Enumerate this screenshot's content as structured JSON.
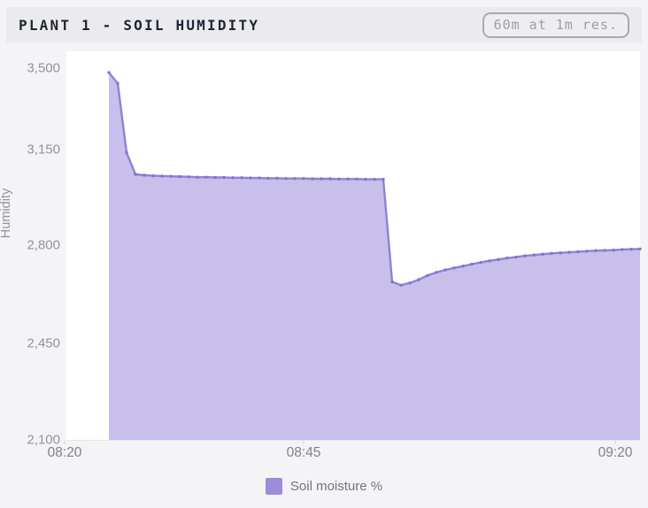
{
  "header": {
    "title": "PLANT 1 - SOIL HUMIDITY",
    "badge": "60m at 1m res."
  },
  "legend": {
    "label": "Soil moisture %"
  },
  "chart_data": {
    "type": "area",
    "title": "PLANT 1 - SOIL HUMIDITY",
    "xlabel": "",
    "ylabel": "Humidity",
    "ylim": [
      2100,
      3500
    ],
    "grid": false,
    "legend_position": "bottom",
    "y_ticks": {
      "values": [
        3500,
        3150,
        2800,
        2450,
        2100
      ],
      "labels": [
        "3,500",
        "3,150",
        "2,800",
        "2,450",
        "2,100"
      ]
    },
    "x_ticks": [
      "08:20",
      "08:45",
      "09:20"
    ],
    "series": [
      {
        "name": "Soil moisture %",
        "x": [
          "08:25",
          "08:26",
          "08:27",
          "08:28",
          "08:29",
          "08:30",
          "08:31",
          "08:32",
          "08:33",
          "08:34",
          "08:35",
          "08:36",
          "08:37",
          "08:38",
          "08:39",
          "08:40",
          "08:41",
          "08:42",
          "08:43",
          "08:44",
          "08:45",
          "08:46",
          "08:47",
          "08:48",
          "08:49",
          "08:50",
          "08:51",
          "08:52",
          "08:53",
          "08:54",
          "08:55",
          "08:56",
          "08:57",
          "08:58",
          "08:59",
          "09:00",
          "09:01",
          "09:02",
          "09:03",
          "09:04",
          "09:05",
          "09:06",
          "09:07",
          "09:08",
          "09:09",
          "09:10",
          "09:11",
          "09:12",
          "09:13",
          "09:14",
          "09:15",
          "09:16",
          "09:17",
          "09:18",
          "09:19",
          "09:20",
          "09:21",
          "09:22",
          "09:23",
          "09:24",
          "09:25"
        ],
        "values": [
          3430,
          3390,
          3140,
          3061,
          3058,
          3056,
          3055,
          3054,
          3053,
          3052,
          3051,
          3051,
          3050,
          3050,
          3049,
          3049,
          3048,
          3048,
          3047,
          3047,
          3046,
          3046,
          3046,
          3045,
          3045,
          3045,
          3044,
          3044,
          3044,
          3043,
          3043,
          3043,
          2672,
          2660,
          2668,
          2680,
          2695,
          2706,
          2715,
          2722,
          2729,
          2736,
          2742,
          2748,
          2753,
          2758,
          2762,
          2766,
          2769,
          2772,
          2775,
          2777,
          2779,
          2781,
          2783,
          2785,
          2786,
          2787,
          2789,
          2790,
          2791
        ]
      }
    ],
    "colors": {
      "line": "#9180d8",
      "fill": "rgba(145,128,216,0.5)",
      "marker": "#8374cf",
      "legend_swatch": "#9c8cda",
      "plot_background": "#ffffff",
      "page_background": "#f4f4f6",
      "header_background": "#ebebed"
    }
  }
}
